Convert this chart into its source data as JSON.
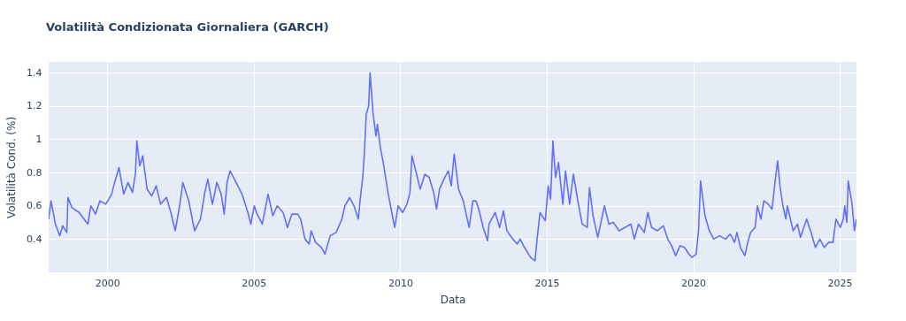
{
  "chart_data": {
    "type": "line",
    "title": "Volatilità Condizionata Giornaliera (GARCH)",
    "xlabel": "Data",
    "ylabel": "Volatilità Cond. (%)",
    "xlim": [
      1998,
      2025.57
    ],
    "xticks": [
      2000,
      2005,
      2010,
      2015,
      2020,
      2025
    ],
    "ylim": [
      0.2,
      1.465
    ],
    "yticks": [
      0.4,
      0.6,
      0.8,
      1,
      1.2,
      1.4
    ],
    "grid": true,
    "x": [
      1998.0,
      1998.08,
      1998.23,
      1998.38,
      1998.48,
      1998.62,
      1998.66,
      1998.79,
      1999.04,
      1999.34,
      1999.44,
      1999.6,
      1999.75,
      1999.95,
      2000.15,
      2000.25,
      2000.4,
      2000.56,
      2000.71,
      2000.86,
      2000.96,
      2001.01,
      2001.11,
      2001.21,
      2001.36,
      2001.52,
      2001.67,
      2001.82,
      2002.02,
      2002.17,
      2002.32,
      2002.47,
      2002.58,
      2002.78,
      2002.98,
      2003.18,
      2003.33,
      2003.43,
      2003.59,
      2003.74,
      2003.89,
      2003.99,
      2004.09,
      2004.19,
      2004.34,
      2004.6,
      2004.8,
      2004.9,
      2005.02,
      2005.09,
      2005.29,
      2005.49,
      2005.65,
      2005.8,
      2006.0,
      2006.15,
      2006.3,
      2006.5,
      2006.6,
      2006.75,
      2006.89,
      2006.96,
      2007.11,
      2007.31,
      2007.43,
      2007.61,
      2007.81,
      2008.01,
      2008.11,
      2008.27,
      2008.42,
      2008.57,
      2008.64,
      2008.72,
      2008.77,
      2008.84,
      2008.92,
      2008.97,
      2009.07,
      2009.17,
      2009.22,
      2009.32,
      2009.42,
      2009.58,
      2009.71,
      2009.81,
      2009.93,
      2010.08,
      2010.23,
      2010.33,
      2010.4,
      2010.53,
      2010.68,
      2010.84,
      2010.99,
      2011.14,
      2011.24,
      2011.34,
      2011.49,
      2011.64,
      2011.74,
      2011.84,
      2011.99,
      2012.15,
      2012.35,
      2012.48,
      2012.58,
      2012.68,
      2012.83,
      2012.98,
      2013.03,
      2013.24,
      2013.39,
      2013.52,
      2013.64,
      2013.84,
      2013.99,
      2014.09,
      2014.24,
      2014.45,
      2014.6,
      2014.67,
      2014.77,
      2014.95,
      2015.05,
      2015.13,
      2015.21,
      2015.3,
      2015.4,
      2015.55,
      2015.64,
      2015.78,
      2015.91,
      2016.06,
      2016.21,
      2016.38,
      2016.46,
      2016.58,
      2016.74,
      2016.97,
      2017.12,
      2017.27,
      2017.47,
      2017.67,
      2017.87,
      2017.99,
      2018.13,
      2018.33,
      2018.45,
      2018.58,
      2018.78,
      2018.98,
      2019.13,
      2019.26,
      2019.4,
      2019.55,
      2019.7,
      2019.85,
      2019.95,
      2020.1,
      2020.18,
      2020.25,
      2020.4,
      2020.55,
      2020.7,
      2020.9,
      2021.1,
      2021.26,
      2021.41,
      2021.49,
      2021.61,
      2021.76,
      2021.86,
      2021.96,
      2022.11,
      2022.19,
      2022.31,
      2022.41,
      2022.56,
      2022.69,
      2022.79,
      2022.88,
      2022.96,
      2023.06,
      2023.16,
      2023.21,
      2023.41,
      2023.56,
      2023.66,
      2023.87,
      2024.02,
      2024.17,
      2024.32,
      2024.47,
      2024.62,
      2024.77,
      2024.87,
      2025.02,
      2025.12,
      2025.17,
      2025.24,
      2025.29,
      2025.42,
      2025.5,
      2025.57
    ],
    "series": [
      {
        "color": "#636efa",
        "values": [
          0.52,
          0.63,
          0.49,
          0.42,
          0.48,
          0.44,
          0.65,
          0.59,
          0.56,
          0.49,
          0.6,
          0.55,
          0.63,
          0.61,
          0.67,
          0.74,
          0.83,
          0.67,
          0.74,
          0.68,
          0.79,
          0.99,
          0.84,
          0.9,
          0.7,
          0.66,
          0.72,
          0.61,
          0.65,
          0.56,
          0.45,
          0.6,
          0.74,
          0.63,
          0.45,
          0.52,
          0.68,
          0.76,
          0.61,
          0.74,
          0.67,
          0.55,
          0.74,
          0.81,
          0.76,
          0.67,
          0.56,
          0.49,
          0.6,
          0.56,
          0.49,
          0.67,
          0.54,
          0.6,
          0.56,
          0.47,
          0.55,
          0.55,
          0.52,
          0.4,
          0.37,
          0.45,
          0.38,
          0.35,
          0.31,
          0.42,
          0.44,
          0.52,
          0.6,
          0.65,
          0.6,
          0.52,
          0.65,
          0.77,
          0.9,
          1.15,
          1.2,
          1.4,
          1.16,
          1.02,
          1.09,
          0.95,
          0.86,
          0.68,
          0.56,
          0.47,
          0.6,
          0.56,
          0.61,
          0.68,
          0.9,
          0.81,
          0.7,
          0.79,
          0.77,
          0.68,
          0.58,
          0.7,
          0.76,
          0.81,
          0.72,
          0.91,
          0.7,
          0.63,
          0.47,
          0.63,
          0.63,
          0.58,
          0.47,
          0.39,
          0.49,
          0.56,
          0.47,
          0.57,
          0.45,
          0.4,
          0.37,
          0.4,
          0.35,
          0.29,
          0.27,
          0.4,
          0.56,
          0.51,
          0.72,
          0.64,
          0.99,
          0.77,
          0.86,
          0.61,
          0.81,
          0.61,
          0.79,
          0.63,
          0.49,
          0.47,
          0.71,
          0.54,
          0.41,
          0.6,
          0.49,
          0.5,
          0.45,
          0.47,
          0.49,
          0.4,
          0.49,
          0.44,
          0.56,
          0.47,
          0.45,
          0.48,
          0.4,
          0.36,
          0.3,
          0.36,
          0.35,
          0.31,
          0.29,
          0.31,
          0.45,
          0.75,
          0.54,
          0.45,
          0.4,
          0.42,
          0.4,
          0.43,
          0.38,
          0.44,
          0.35,
          0.3,
          0.38,
          0.44,
          0.47,
          0.6,
          0.52,
          0.63,
          0.61,
          0.58,
          0.74,
          0.87,
          0.72,
          0.6,
          0.52,
          0.6,
          0.45,
          0.49,
          0.41,
          0.52,
          0.44,
          0.35,
          0.4,
          0.35,
          0.38,
          0.38,
          0.52,
          0.47,
          0.52,
          0.6,
          0.5,
          0.75,
          0.61,
          0.45,
          0.52
        ]
      }
    ]
  }
}
